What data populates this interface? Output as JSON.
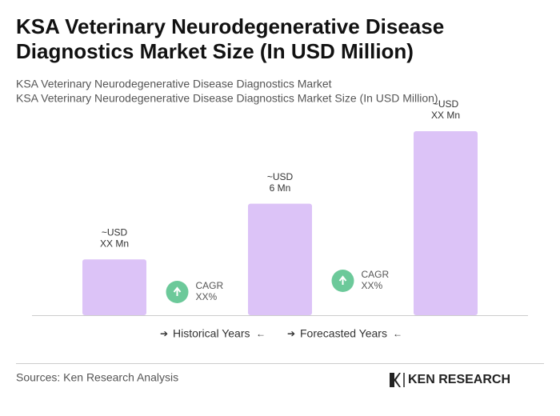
{
  "chart_data": {
    "type": "bar",
    "title": [
      "KSA Veterinary Neurodegenerative Disease",
      "Diagnostics Market Size (In USD Million)"
    ],
    "subtitle": [
      "KSA Veterinary Neurodegenerative Disease Diagnostics Market",
      "KSA Veterinary Neurodegenerative Disease Diagnostics Market Size (In USD Million)"
    ],
    "values": [
      3,
      6,
      9.9
    ],
    "value_labels": [
      [
        "~USD",
        "XX Mn"
      ],
      [
        "~USD",
        "6 Mn"
      ],
      [
        "~USD",
        "XX Mn"
      ]
    ],
    "color": "#dcc3f7",
    "cagr": [
      [
        "CAGR",
        "XX%"
      ],
      [
        "CAGR",
        "XX%"
      ]
    ],
    "cagr_color": "#6cc99a",
    "legend": [
      "Historical Years",
      "Forecasted Years"
    ],
    "source": "Sources: Ken Research Analysis",
    "logo": "KEN RESEARCH"
  }
}
